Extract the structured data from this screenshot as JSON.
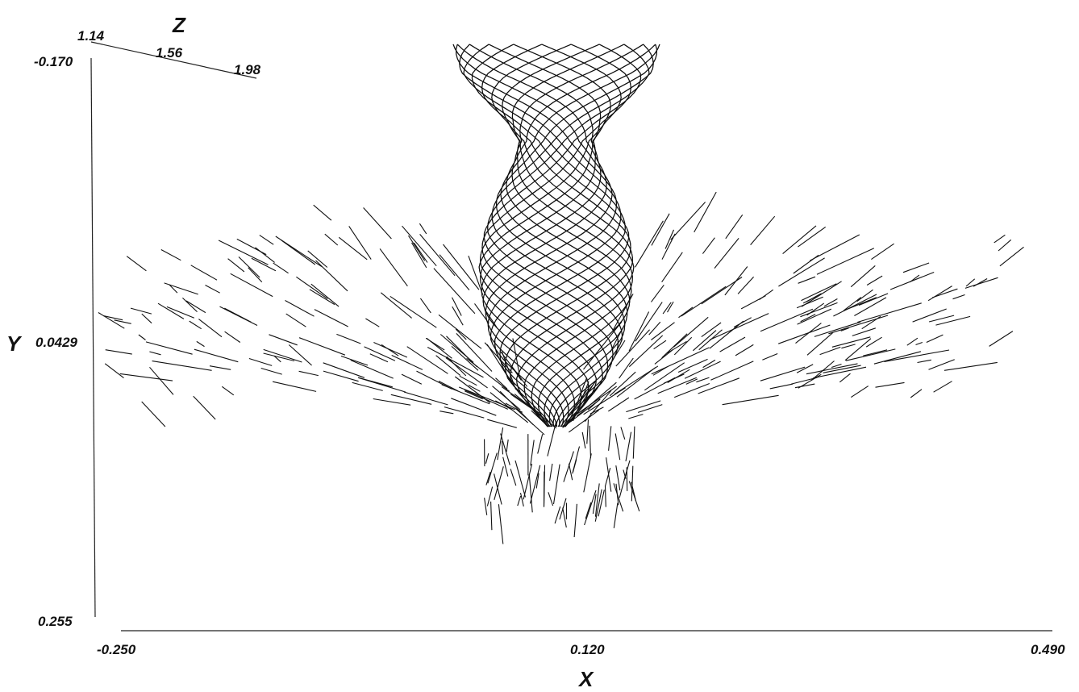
{
  "chart_data": {
    "type": "scatter",
    "title": "",
    "xlabel": "X",
    "ylabel": "Y",
    "zlabel": "Z",
    "x_ticks": [
      "-0.250",
      "0.120",
      "0.490"
    ],
    "y_ticks": [
      "-0.170",
      "0.0429",
      "0.255"
    ],
    "z_ticks": [
      "1.14",
      "1.56",
      "1.98"
    ],
    "xlim": [
      -0.25,
      0.49
    ],
    "ylim": [
      -0.17,
      0.255
    ],
    "zlim": [
      1.14,
      1.98
    ],
    "y_axis_inverted": true,
    "grid": false,
    "legend": "none",
    "line_color": "#111111"
  }
}
